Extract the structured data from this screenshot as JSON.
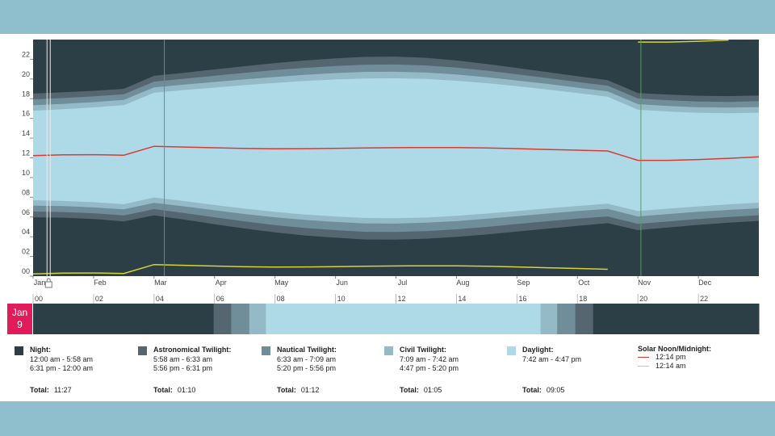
{
  "date_badge": {
    "month": "Jan",
    "day": "9"
  },
  "chart_data": {
    "type": "area",
    "title": "",
    "y_ticks": [
      "00",
      "02",
      "04",
      "06",
      "08",
      "10",
      "12",
      "14",
      "16",
      "18",
      "20",
      "22"
    ],
    "months": [
      "Jan",
      "Feb",
      "Mar",
      "Apr",
      "May",
      "Jun",
      "Jul",
      "Aug",
      "Sep",
      "Oct",
      "Nov",
      "Dec"
    ],
    "ylim": [
      0,
      24
    ],
    "dst_start_month": 2.17,
    "dst_end_month": 10.05,
    "selected_month": 0.27,
    "series_x": [
      0,
      0.5,
      1,
      1.5,
      2,
      2.5,
      3,
      3.5,
      4,
      4.5,
      5,
      5.5,
      6,
      6.5,
      7,
      7.5,
      8,
      8.5,
      9,
      9.5,
      10,
      10.5,
      11,
      11.5,
      12
    ],
    "series_local": {
      "astro_start": [
        5.97,
        5.93,
        5.8,
        5.55,
        6.17,
        5.73,
        5.27,
        4.83,
        4.43,
        4.12,
        3.9,
        3.72,
        3.7,
        3.8,
        3.98,
        4.23,
        4.52,
        4.82,
        5.1,
        5.37,
        4.67,
        4.93,
        5.2,
        5.42,
        5.6
      ],
      "naut_start": [
        6.55,
        6.5,
        6.38,
        6.15,
        6.8,
        6.4,
        5.97,
        5.55,
        5.17,
        4.88,
        4.67,
        4.5,
        4.48,
        4.57,
        4.75,
        5.0,
        5.28,
        5.57,
        5.83,
        6.05,
        5.3,
        5.55,
        5.8,
        6.0,
        6.18
      ],
      "civil_start": [
        7.15,
        7.1,
        6.97,
        6.77,
        7.43,
        7.08,
        6.68,
        6.3,
        5.97,
        5.7,
        5.5,
        5.35,
        5.33,
        5.42,
        5.58,
        5.82,
        6.08,
        6.35,
        6.6,
        6.82,
        6.05,
        6.3,
        6.53,
        6.72,
        6.88
      ],
      "sunrise": [
        7.7,
        7.63,
        7.5,
        7.3,
        7.98,
        7.62,
        7.22,
        6.85,
        6.52,
        6.25,
        6.05,
        5.9,
        5.88,
        5.95,
        6.12,
        6.35,
        6.6,
        6.87,
        7.12,
        7.35,
        6.6,
        6.85,
        7.08,
        7.28,
        7.45
      ],
      "sunset": [
        16.78,
        16.93,
        17.12,
        17.35,
        18.6,
        18.88,
        19.13,
        19.38,
        19.6,
        19.8,
        19.95,
        20.05,
        20.07,
        20.0,
        19.82,
        19.58,
        19.27,
        18.93,
        18.57,
        18.2,
        16.88,
        16.7,
        16.57,
        16.53,
        16.58
      ],
      "civil_end": [
        17.33,
        17.48,
        17.65,
        17.88,
        19.15,
        19.43,
        19.7,
        19.97,
        20.2,
        20.43,
        20.6,
        20.72,
        20.73,
        20.65,
        20.45,
        20.18,
        19.85,
        19.5,
        19.12,
        18.75,
        17.45,
        17.27,
        17.13,
        17.1,
        17.15
      ],
      "naut_end": [
        17.93,
        18.07,
        18.23,
        18.45,
        19.73,
        20.03,
        20.33,
        20.62,
        20.9,
        21.13,
        21.32,
        21.45,
        21.47,
        21.37,
        21.15,
        20.85,
        20.48,
        20.1,
        19.7,
        19.32,
        18.02,
        17.85,
        17.72,
        17.68,
        17.75
      ],
      "astro_end": [
        18.52,
        18.65,
        18.8,
        19.0,
        20.32,
        20.63,
        20.97,
        21.3,
        21.62,
        21.88,
        22.1,
        22.25,
        22.27,
        22.15,
        21.88,
        21.53,
        21.12,
        20.7,
        20.28,
        19.88,
        18.57,
        18.42,
        18.3,
        18.27,
        18.33
      ],
      "solar_noon": [
        12.23,
        12.3,
        12.32,
        12.27,
        13.17,
        13.1,
        13.02,
        12.95,
        12.92,
        12.93,
        12.97,
        13.0,
        13.03,
        13.05,
        13.05,
        13.0,
        12.93,
        12.85,
        12.78,
        12.7,
        11.75,
        11.75,
        11.83,
        11.95,
        12.1
      ],
      "solar_midnight": [
        0.23,
        0.3,
        0.32,
        0.27,
        1.17,
        1.1,
        1.02,
        0.95,
        0.92,
        0.93,
        0.97,
        1.0,
        1.03,
        1.05,
        1.05,
        1.0,
        0.93,
        0.85,
        0.78,
        0.7,
        23.75,
        23.75,
        23.83,
        23.95,
        0.1
      ]
    },
    "day_bar": {
      "hour_ticks": [
        "00",
        "02",
        "04",
        "06",
        "08",
        "10",
        "12",
        "14",
        "16",
        "18",
        "20",
        "22"
      ],
      "segments": [
        {
          "kind": "night",
          "start": 0.0,
          "end": 5.97
        },
        {
          "kind": "astro",
          "start": 5.97,
          "end": 6.55
        },
        {
          "kind": "nautical",
          "start": 6.55,
          "end": 7.15
        },
        {
          "kind": "civil",
          "start": 7.15,
          "end": 7.7
        },
        {
          "kind": "day",
          "start": 7.7,
          "end": 16.78
        },
        {
          "kind": "civil",
          "start": 16.78,
          "end": 17.33
        },
        {
          "kind": "nautical",
          "start": 17.33,
          "end": 17.93
        },
        {
          "kind": "astro",
          "start": 17.93,
          "end": 18.52
        },
        {
          "kind": "night",
          "start": 18.52,
          "end": 24.0
        }
      ]
    },
    "colors": {
      "night": "#2c3e46",
      "astro": "#556670",
      "nautical": "#708d9a",
      "civil": "#94bac8",
      "day": "#aedae8",
      "noon": "#d93a32",
      "midnight": "#d8d437",
      "dst_line": "#4fa35a"
    }
  },
  "legend": {
    "night": {
      "title": "Night:",
      "lines": [
        "12:00 am - 5:58 am",
        "6:31 pm - 12:00 am"
      ],
      "total_label": "Total:",
      "total": "11:27"
    },
    "astro": {
      "title": "Astronomical Twilight:",
      "lines": [
        "5:58 am - 6:33 am",
        "5:56 pm - 6:31 pm"
      ],
      "total_label": "Total:",
      "total": "01:10"
    },
    "nautical": {
      "title": "Nautical Twilight:",
      "lines": [
        "6:33 am - 7:09 am",
        "5:20 pm - 5:56 pm"
      ],
      "total_label": "Total:",
      "total": "01:12"
    },
    "civil": {
      "title": "Civil Twilight:",
      "lines": [
        "7:09 am - 7:42 am",
        "4:47 pm - 5:20 pm"
      ],
      "total_label": "Total:",
      "total": "01:05"
    },
    "day": {
      "title": "Daylight:",
      "lines": [
        "7:42 am - 4:47 pm"
      ],
      "total_label": "Total:",
      "total": "09:05"
    },
    "solar": {
      "title": "Solar Noon/Midnight:",
      "noon": "12:14 pm",
      "midnight": "12:14 am"
    }
  }
}
